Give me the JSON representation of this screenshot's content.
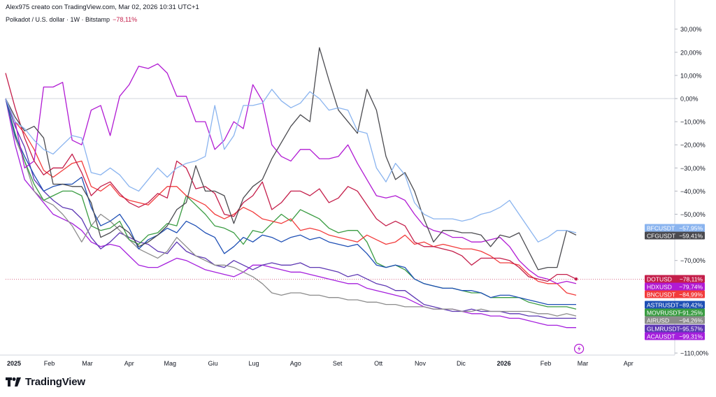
{
  "header": {
    "attribution": "Alex975 creato con TradingView.com, Mar 02, 2026 10:31 UTC+1",
    "symbol_line": "Polkadot / U.S. dollar · 1W · Bitstamp",
    "symbol_change": "−78,11%"
  },
  "brand": {
    "name": "TradingView"
  },
  "chart_data": {
    "type": "line",
    "title": "Polkadot / U.S. dollar · 1W · Bitstamp",
    "xlabel": "",
    "ylabel": "",
    "ylim": [
      -110,
      35
    ],
    "y_ticks": [
      {
        "v": 30,
        "label": "30,00%"
      },
      {
        "v": 20,
        "label": "20,00%"
      },
      {
        "v": 10,
        "label": "10,00%"
      },
      {
        "v": 0,
        "label": "0,00%"
      },
      {
        "v": -10,
        "label": "−10,00%"
      },
      {
        "v": -20,
        "label": "−20,00%"
      },
      {
        "v": -30,
        "label": "−30,00%"
      },
      {
        "v": -40,
        "label": "−40,00%"
      },
      {
        "v": -50,
        "label": "−50,00%"
      },
      {
        "v": -70,
        "label": "−70,00%"
      },
      {
        "v": -110,
        "label": "−110,00%"
      }
    ],
    "x_ticks": [
      {
        "w": 0,
        "label": "2025",
        "bold": true
      },
      {
        "w": 4.6,
        "label": "Feb"
      },
      {
        "w": 8.6,
        "label": "Mar"
      },
      {
        "w": 13,
        "label": "Apr"
      },
      {
        "w": 17.3,
        "label": "Mag"
      },
      {
        "w": 21.8,
        "label": "Giu"
      },
      {
        "w": 26.1,
        "label": "Lug"
      },
      {
        "w": 30.5,
        "label": "Ago"
      },
      {
        "w": 34.9,
        "label": "Set"
      },
      {
        "w": 39.2,
        "label": "Ott"
      },
      {
        "w": 43.6,
        "label": "Nov"
      },
      {
        "w": 47.9,
        "label": "Dic"
      },
      {
        "w": 52.4,
        "label": "2026",
        "bold": true
      },
      {
        "w": 56.8,
        "label": "Feb"
      },
      {
        "w": 60.7,
        "label": "Mar"
      },
      {
        "w": 65.5,
        "label": "Apr"
      }
    ],
    "x_unit": "weeks since start of 2025",
    "series": [
      {
        "name": "BFCUSDT",
        "label": "−57,95%",
        "color": "#8ab4ef",
        "values": [
          0,
          -10,
          -13,
          -18,
          -22,
          -24,
          -20,
          -16,
          -17,
          -32,
          -33,
          -30,
          -33,
          -38,
          -40,
          -35,
          -30,
          -34,
          -30,
          -28,
          -27,
          -25,
          -3,
          -22,
          -16,
          -3,
          -3,
          -2,
          4,
          -1,
          -4,
          -2,
          3,
          0,
          -5,
          -4,
          -5,
          -14,
          -15,
          -30,
          -36,
          -28,
          -33,
          -45,
          -50,
          -52,
          -52,
          -52,
          -53,
          -52,
          -50,
          -49,
          -47,
          -44,
          -50,
          -56,
          -62,
          -60,
          -57,
          -57,
          -58
        ]
      },
      {
        "name": "CFGUSDT",
        "label": "−59,41%",
        "color": "#4a4a4f",
        "values": [
          0,
          -8,
          -14,
          -12,
          -17,
          -37,
          -37,
          -38,
          -38,
          -45,
          -60,
          -58,
          -55,
          -58,
          -64,
          -62,
          -59,
          -55,
          -48,
          -45,
          -29,
          -40,
          -40,
          -42,
          -54,
          -43,
          -38,
          -35,
          -26,
          -19,
          -12,
          -7,
          -10,
          22,
          8,
          -5,
          -10,
          -15,
          4,
          -5,
          -25,
          -35,
          -32,
          -40,
          -52,
          -62,
          -57,
          -57,
          -58,
          -58,
          -59,
          -64,
          -59,
          -60,
          -58,
          -66,
          -74,
          -73,
          -73,
          -57,
          -59
        ]
      },
      {
        "name": "DOTUSD",
        "label": "−78,11%",
        "color": "#c41e4a",
        "values": [
          11,
          -4,
          -17,
          -27,
          -33,
          -30,
          -30,
          -24,
          -32,
          -42,
          -38,
          -36,
          -41,
          -45,
          -47,
          -45,
          -41,
          -43,
          -27,
          -30,
          -39,
          -38,
          -41,
          -50,
          -51,
          -45,
          -42,
          -36,
          -48,
          -45,
          -40,
          -40,
          -42,
          -39,
          -45,
          -43,
          -38,
          -40,
          -46,
          -52,
          -55,
          -53,
          -55,
          -62,
          -64,
          -64,
          -65,
          -66,
          -68,
          -72,
          -69,
          -69,
          -69,
          -70,
          -73,
          -77,
          -78,
          -79,
          -76,
          -76,
          -78
        ]
      },
      {
        "name": "HDXUSD",
        "label": "−79,74%",
        "color": "#b11ad3",
        "values": [
          0,
          -10,
          -30,
          -27,
          5,
          5,
          7,
          -18,
          -20,
          -5,
          -3,
          -16,
          1,
          6,
          14,
          13,
          15,
          11,
          1,
          1,
          -10,
          -10,
          -22,
          -18,
          -10,
          -13,
          6,
          -1,
          -20,
          -25,
          -27,
          -22,
          -22,
          -26,
          -26,
          -25,
          -20,
          -28,
          -35,
          -42,
          -43,
          -42,
          -44,
          -50,
          -55,
          -57,
          -58,
          -60,
          -60,
          -62,
          -62,
          -61,
          -60,
          -64,
          -70,
          -74,
          -77,
          -78,
          -80,
          -79,
          -80
        ]
      },
      {
        "name": "BNCUSDT",
        "label": "−84,99%",
        "color": "#f23b3b",
        "values": [
          0,
          -10,
          -15,
          -22,
          -31,
          -34,
          -31,
          -28,
          -27,
          -38,
          -40,
          -37,
          -42,
          -44,
          -45,
          -46,
          -42,
          -38,
          -38,
          -42,
          -44,
          -46,
          -50,
          -52,
          -50,
          -47,
          -49,
          -52,
          -53,
          -54,
          -52,
          -57,
          -56,
          -57,
          -59,
          -60,
          -61,
          -62,
          -59,
          -61,
          -63,
          -62,
          -59,
          -63,
          -62,
          -64,
          -63,
          -64,
          -65,
          -65,
          -66,
          -68,
          -71,
          -71,
          -72,
          -76,
          -79,
          -80,
          -80,
          -84,
          -85
        ]
      },
      {
        "name": "ASTRUSDT",
        "label": "−89,42%",
        "color": "#1e4fb5",
        "values": [
          0,
          -16,
          -25,
          -33,
          -40,
          -38,
          -37,
          -37,
          -34,
          -47,
          -55,
          -53,
          -50,
          -56,
          -65,
          -61,
          -59,
          -56,
          -58,
          -53,
          -55,
          -58,
          -60,
          -67,
          -64,
          -60,
          -62,
          -59,
          -60,
          -62,
          -60,
          -59,
          -61,
          -60,
          -62,
          -63,
          -64,
          -63,
          -67,
          -72,
          -73,
          -72,
          -73,
          -78,
          -80,
          -81,
          -82,
          -82,
          -83,
          -83,
          -84,
          -86,
          -85,
          -85,
          -86,
          -87,
          -88,
          -89,
          -89,
          -89,
          -89
        ]
      },
      {
        "name": "MOVRUSDT",
        "label": "−91,25%",
        "color": "#3a9c42",
        "values": [
          0,
          -15,
          -27,
          -37,
          -44,
          -42,
          -40,
          -40,
          -42,
          -55,
          -57,
          -56,
          -53,
          -61,
          -63,
          -59,
          -58,
          -54,
          -55,
          -42,
          -46,
          -50,
          -55,
          -56,
          -58,
          -63,
          -57,
          -58,
          -54,
          -50,
          -53,
          -48,
          -50,
          -52,
          -56,
          -58,
          -57,
          -57,
          -62,
          -71,
          -73,
          -72,
          -74,
          -78,
          -80,
          -81,
          -82,
          -82,
          -83,
          -84,
          -84,
          -86,
          -86,
          -86,
          -86,
          -88,
          -89,
          -90,
          -90,
          -90,
          -91
        ]
      },
      {
        "name": "AIRUSD",
        "label": "−94,26%",
        "color": "#8c8c8c",
        "values": [
          0,
          -17,
          -27,
          -40,
          -44,
          -46,
          -50,
          -55,
          -62,
          -55,
          -50,
          -53,
          -57,
          -61,
          -65,
          -67,
          -69,
          -66,
          -60,
          -64,
          -68,
          -70,
          -72,
          -72,
          -73,
          -75,
          -77,
          -80,
          -84,
          -85,
          -84,
          -84,
          -85,
          -85,
          -86,
          -86,
          -87,
          -87,
          -88,
          -88,
          -89,
          -89,
          -90,
          -90,
          -90,
          -91,
          -91,
          -91,
          -92,
          -92,
          -91,
          -92,
          -92,
          -92,
          -92,
          -92,
          -93,
          -93,
          -94,
          -93,
          -94
        ]
      },
      {
        "name": "GLMRUSDT",
        "label": "−95,57%",
        "color": "#5d37b3",
        "values": [
          0,
          -12,
          -21,
          -35,
          -40,
          -44,
          -47,
          -48,
          -52,
          -60,
          -65,
          -62,
          -58,
          -60,
          -62,
          -63,
          -66,
          -67,
          -62,
          -66,
          -68,
          -69,
          -72,
          -73,
          -70,
          -72,
          -74,
          -72,
          -71,
          -72,
          -72,
          -71,
          -73,
          -73,
          -74,
          -75,
          -77,
          -76,
          -78,
          -80,
          -81,
          -83,
          -83,
          -86,
          -89,
          -90,
          -91,
          -92,
          -92,
          -91,
          -92,
          -92,
          -92,
          -93,
          -93,
          -94,
          -94,
          -95,
          -95,
          -95,
          -95
        ]
      },
      {
        "name": "ACAUSDT",
        "label": "−99,31%",
        "color": "#a51fdd",
        "values": [
          0,
          -20,
          -35,
          -40,
          -45,
          -50,
          -52,
          -54,
          -57,
          -62,
          -64,
          -63,
          -64,
          -68,
          -72,
          -73,
          -73,
          -71,
          -69,
          -70,
          -72,
          -74,
          -75,
          -76,
          -77,
          -75,
          -72,
          -72,
          -73,
          -74,
          -75,
          -75,
          -76,
          -77,
          -78,
          -79,
          -80,
          -80,
          -82,
          -83,
          -84,
          -85,
          -86,
          -88,
          -90,
          -91,
          -91,
          -91,
          -92,
          -93,
          -93,
          -94,
          -94,
          -95,
          -95,
          -96,
          -97,
          -98,
          -98,
          -99,
          -99
        ]
      }
    ],
    "reference_line": {
      "value": -78.11,
      "color": "#c41e4a"
    },
    "labels_order": [
      "BFCUSDT",
      "CFGUSDT",
      "DOTUSD",
      "HDXUSD",
      "BNCUSDT",
      "ASTRUSDT",
      "MOVRUSDT",
      "AIRUSD",
      "GLMRUSDT",
      "ACAUSDT"
    ],
    "event_marker": {
      "w": 60.3,
      "color": "#b11ad3"
    }
  }
}
